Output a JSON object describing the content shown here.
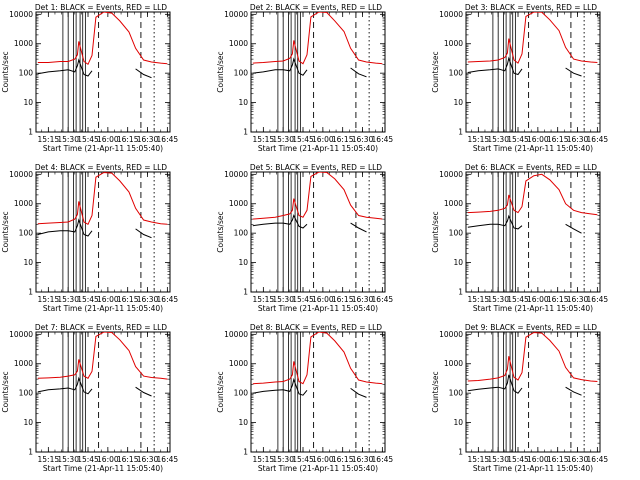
{
  "figure": {
    "start_time_label": "Start Time (21-Apr-11 15:05:40)",
    "ylabel": "Counts/sec",
    "x_tick_labels": [
      "15:15",
      "15:30",
      "15:45",
      "16:00",
      "16:15",
      "16:30",
      "16:45"
    ],
    "y_tick_labels": [
      "1",
      "10",
      "100",
      "1000",
      "10000"
    ]
  },
  "colors": {
    "events": "#000000",
    "lld": "#e00000",
    "axes": "#000000"
  },
  "chart_data": [
    {
      "type": "line",
      "title": "Det 1: BLACK = Events, RED = LLD",
      "xlim": [
        "15:05:40",
        "16:47:00"
      ],
      "yscale": "log",
      "ylim": [
        1,
        12000
      ],
      "x": [
        "15:07",
        "15:15",
        "15:24",
        "15:30",
        "15:35",
        "15:37",
        "15:38",
        "15:42",
        "15:45",
        "15:48",
        "15:51",
        "15:57",
        "16:03",
        "16:09",
        "16:16",
        "16:21",
        "16:27",
        "16:33",
        "16:40",
        "16:45"
      ],
      "series": [
        {
          "name": "RED = LLD",
          "values": [
            230,
            230,
            250,
            250,
            300,
            420,
            1200,
            250,
            200,
            400,
            8000,
            12000,
            11000,
            6000,
            2500,
            700,
            280,
            240,
            220,
            210
          ]
        },
        {
          "name": "BLACK = Events",
          "values": [
            95,
            110,
            120,
            130,
            110,
            180,
            280,
            90,
            80,
            120,
            null,
            null,
            null,
            null,
            null,
            140,
            90,
            70,
            null,
            null
          ]
        }
      ],
      "vlines_solid": [
        "15:26",
        "15:30",
        "15:34",
        "15:36",
        "15:39",
        "15:41",
        "15:43"
      ],
      "vlines_dashed": [
        "15:53",
        "16:25"
      ],
      "vlines_dotted": [
        "16:35"
      ]
    },
    {
      "type": "line",
      "title": "Det 2: BLACK = Events, RED = LLD",
      "xlim": [
        "15:05:40",
        "16:47:00"
      ],
      "yscale": "log",
      "ylim": [
        1,
        12000
      ],
      "x": [
        "15:07",
        "15:15",
        "15:24",
        "15:30",
        "15:35",
        "15:37",
        "15:38",
        "15:42",
        "15:45",
        "15:48",
        "15:51",
        "15:57",
        "16:03",
        "16:09",
        "16:16",
        "16:21",
        "16:27",
        "16:33",
        "16:40",
        "16:45"
      ],
      "series": [
        {
          "name": "RED = LLD",
          "values": [
            220,
            230,
            250,
            260,
            320,
            450,
            1300,
            260,
            210,
            420,
            8200,
            12000,
            11500,
            6000,
            2600,
            700,
            280,
            240,
            220,
            210
          ]
        },
        {
          "name": "BLACK = Events",
          "values": [
            100,
            110,
            130,
            130,
            120,
            190,
            300,
            100,
            85,
            130,
            null,
            null,
            null,
            null,
            null,
            150,
            95,
            75,
            null,
            null
          ]
        }
      ],
      "vlines_solid": [
        "15:26",
        "15:30",
        "15:34",
        "15:36",
        "15:39",
        "15:41",
        "15:43"
      ],
      "vlines_dashed": [
        "15:53",
        "16:25"
      ],
      "vlines_dotted": [
        "16:35"
      ]
    },
    {
      "type": "line",
      "title": "Det 3: BLACK = Events, RED = LLD",
      "xlim": [
        "15:05:40",
        "16:47:00"
      ],
      "yscale": "log",
      "ylim": [
        1,
        12000
      ],
      "x": [
        "15:07",
        "15:15",
        "15:24",
        "15:30",
        "15:35",
        "15:37",
        "15:38",
        "15:42",
        "15:45",
        "15:48",
        "15:51",
        "15:57",
        "16:03",
        "16:09",
        "16:16",
        "16:21",
        "16:27",
        "16:33",
        "16:40",
        "16:45"
      ],
      "series": [
        {
          "name": "RED = LLD",
          "values": [
            240,
            250,
            260,
            280,
            340,
            480,
            1500,
            280,
            220,
            450,
            8500,
            12000,
            11800,
            6500,
            2800,
            750,
            300,
            260,
            240,
            230
          ]
        },
        {
          "name": "BLACK = Events",
          "values": [
            105,
            120,
            130,
            140,
            120,
            200,
            320,
            100,
            90,
            140,
            null,
            null,
            null,
            null,
            null,
            150,
            100,
            80,
            null,
            null
          ]
        }
      ],
      "vlines_solid": [
        "15:26",
        "15:30",
        "15:34",
        "15:36",
        "15:39",
        "15:41",
        "15:43"
      ],
      "vlines_dashed": [
        "15:53",
        "16:25"
      ],
      "vlines_dotted": [
        "16:35"
      ]
    },
    {
      "type": "line",
      "title": "Det 4: BLACK = Events, RED = LLD",
      "xlim": [
        "15:05:40",
        "16:47:00"
      ],
      "yscale": "log",
      "ylim": [
        1,
        12000
      ],
      "x": [
        "15:07",
        "15:15",
        "15:24",
        "15:30",
        "15:35",
        "15:37",
        "15:38",
        "15:42",
        "15:45",
        "15:48",
        "15:51",
        "15:57",
        "16:03",
        "16:09",
        "16:16",
        "16:21",
        "16:27",
        "16:33",
        "16:40",
        "16:45"
      ],
      "series": [
        {
          "name": "RED = LLD",
          "values": [
            210,
            220,
            230,
            240,
            300,
            430,
            1200,
            240,
            200,
            400,
            8000,
            11500,
            11000,
            6000,
            2500,
            700,
            280,
            240,
            210,
            200
          ]
        },
        {
          "name": "BLACK = Events",
          "values": [
            90,
            110,
            120,
            120,
            110,
            180,
            280,
            90,
            80,
            120,
            null,
            null,
            null,
            null,
            null,
            140,
            90,
            70,
            null,
            null
          ]
        }
      ],
      "vlines_solid": [
        "15:26",
        "15:30",
        "15:34",
        "15:36",
        "15:39",
        "15:41",
        "15:43"
      ],
      "vlines_dashed": [
        "15:53",
        "16:25"
      ],
      "vlines_dotted": [
        "16:35"
      ]
    },
    {
      "type": "line",
      "title": "Det 5: BLACK = Events, RED = LLD",
      "xlim": [
        "15:05:40",
        "16:47:00"
      ],
      "yscale": "log",
      "ylim": [
        1,
        12000
      ],
      "x": [
        "15:07",
        "15:15",
        "15:24",
        "15:30",
        "15:35",
        "15:37",
        "15:38",
        "15:42",
        "15:45",
        "15:48",
        "15:51",
        "15:57",
        "16:03",
        "16:09",
        "16:16",
        "16:21",
        "16:27",
        "16:33",
        "16:40",
        "16:45"
      ],
      "series": [
        {
          "name": "RED = LLD",
          "values": [
            300,
            320,
            350,
            400,
            450,
            600,
            1500,
            400,
            350,
            600,
            8500,
            12000,
            11500,
            7000,
            3000,
            900,
            400,
            350,
            320,
            300
          ]
        },
        {
          "name": "BLACK = Events",
          "values": [
            180,
            200,
            220,
            220,
            200,
            280,
            400,
            170,
            150,
            200,
            null,
            null,
            null,
            null,
            null,
            220,
            150,
            110,
            null,
            null
          ]
        }
      ],
      "vlines_solid": [
        "15:26",
        "15:30",
        "15:34",
        "15:36",
        "15:39",
        "15:41",
        "15:43"
      ],
      "vlines_dashed": [
        "15:53",
        "16:25"
      ],
      "vlines_dotted": [
        "16:35"
      ]
    },
    {
      "type": "line",
      "title": "Det 6: BLACK = Events, RED = LLD",
      "xlim": [
        "15:05:40",
        "16:47:00"
      ],
      "yscale": "log",
      "ylim": [
        1,
        12000
      ],
      "x": [
        "15:07",
        "15:15",
        "15:24",
        "15:30",
        "15:35",
        "15:37",
        "15:38",
        "15:42",
        "15:45",
        "15:48",
        "15:51",
        "15:57",
        "16:03",
        "16:09",
        "16:16",
        "16:21",
        "16:27",
        "16:33",
        "16:40",
        "16:45"
      ],
      "series": [
        {
          "name": "RED = LLD",
          "values": [
            500,
            520,
            550,
            600,
            700,
            900,
            2000,
            600,
            500,
            800,
            6000,
            9000,
            10000,
            6500,
            3000,
            1000,
            600,
            500,
            450,
            420
          ]
        },
        {
          "name": "BLACK = Events",
          "values": [
            160,
            180,
            200,
            200,
            180,
            260,
            380,
            150,
            140,
            180,
            null,
            null,
            null,
            null,
            null,
            200,
            140,
            100,
            null,
            null
          ]
        }
      ],
      "vlines_solid": [
        "15:26",
        "15:30",
        "15:34",
        "15:36",
        "15:39",
        "15:41",
        "15:43"
      ],
      "vlines_dashed": [
        "15:53",
        "16:25"
      ],
      "vlines_dotted": [
        "16:35"
      ]
    },
    {
      "type": "line",
      "title": "Det 7: BLACK = Events, RED = LLD",
      "xlim": [
        "15:05:40",
        "16:47:00"
      ],
      "yscale": "log",
      "ylim": [
        1,
        12000
      ],
      "x": [
        "15:07",
        "15:15",
        "15:24",
        "15:30",
        "15:35",
        "15:37",
        "15:38",
        "15:42",
        "15:45",
        "15:48",
        "15:51",
        "15:57",
        "16:03",
        "16:09",
        "16:16",
        "16:21",
        "16:27",
        "16:33",
        "16:40",
        "16:45"
      ],
      "series": [
        {
          "name": "RED = LLD",
          "values": [
            320,
            330,
            350,
            380,
            420,
            560,
            1400,
            380,
            320,
            550,
            8500,
            12000,
            11500,
            6500,
            2800,
            800,
            380,
            340,
            320,
            300
          ]
        },
        {
          "name": "BLACK = Events",
          "values": [
            110,
            130,
            140,
            150,
            130,
            200,
            320,
            110,
            95,
            140,
            null,
            null,
            null,
            null,
            null,
            160,
            105,
            80,
            null,
            null
          ]
        }
      ],
      "vlines_solid": [
        "15:26",
        "15:30",
        "15:34",
        "15:36",
        "15:39",
        "15:41",
        "15:43"
      ],
      "vlines_dashed": [
        "15:53",
        "16:25"
      ],
      "vlines_dotted": [
        "16:35"
      ]
    },
    {
      "type": "line",
      "title": "Det 8: BLACK = Events, RED = LLD",
      "xlim": [
        "15:05:40",
        "16:47:00"
      ],
      "yscale": "log",
      "ylim": [
        1,
        12000
      ],
      "x": [
        "15:07",
        "15:15",
        "15:24",
        "15:30",
        "15:35",
        "15:37",
        "15:38",
        "15:42",
        "15:45",
        "15:48",
        "15:51",
        "15:57",
        "16:03",
        "16:09",
        "16:16",
        "16:21",
        "16:27",
        "16:33",
        "16:40",
        "16:45"
      ],
      "series": [
        {
          "name": "RED = LLD",
          "values": [
            210,
            220,
            240,
            250,
            300,
            420,
            1200,
            250,
            210,
            420,
            8200,
            12000,
            11000,
            6000,
            2500,
            700,
            280,
            240,
            220,
            210
          ]
        },
        {
          "name": "BLACK = Events",
          "values": [
            100,
            115,
            125,
            130,
            115,
            185,
            290,
            95,
            85,
            125,
            null,
            null,
            null,
            null,
            null,
            145,
            92,
            72,
            null,
            null
          ]
        }
      ],
      "vlines_solid": [
        "15:26",
        "15:30",
        "15:34",
        "15:36",
        "15:39",
        "15:41",
        "15:43"
      ],
      "vlines_dashed": [
        "15:53",
        "16:25"
      ],
      "vlines_dotted": [
        "16:35"
      ]
    },
    {
      "type": "line",
      "title": "Det 9: BLACK = Events, RED = LLD",
      "xlim": [
        "15:05:40",
        "16:47:00"
      ],
      "yscale": "log",
      "ylim": [
        1,
        12000
      ],
      "x": [
        "15:07",
        "15:15",
        "15:24",
        "15:30",
        "15:35",
        "15:37",
        "15:38",
        "15:42",
        "15:45",
        "15:48",
        "15:51",
        "15:57",
        "16:03",
        "16:09",
        "16:16",
        "16:21",
        "16:27",
        "16:33",
        "16:40",
        "16:45"
      ],
      "series": [
        {
          "name": "RED = LLD",
          "values": [
            260,
            270,
            300,
            330,
            400,
            650,
            1800,
            350,
            280,
            500,
            8000,
            11500,
            11000,
            6200,
            2700,
            750,
            330,
            290,
            260,
            250
          ]
        },
        {
          "name": "BLACK = Events",
          "values": [
            120,
            135,
            150,
            160,
            140,
            220,
            420,
            120,
            100,
            150,
            null,
            null,
            null,
            null,
            null,
            160,
            110,
            85,
            null,
            null
          ]
        }
      ],
      "vlines_solid": [
        "15:26",
        "15:30",
        "15:34",
        "15:36",
        "15:39",
        "15:41",
        "15:43"
      ],
      "vlines_dashed": [
        "15:53",
        "16:25"
      ],
      "vlines_dotted": [
        "16:35"
      ]
    }
  ]
}
